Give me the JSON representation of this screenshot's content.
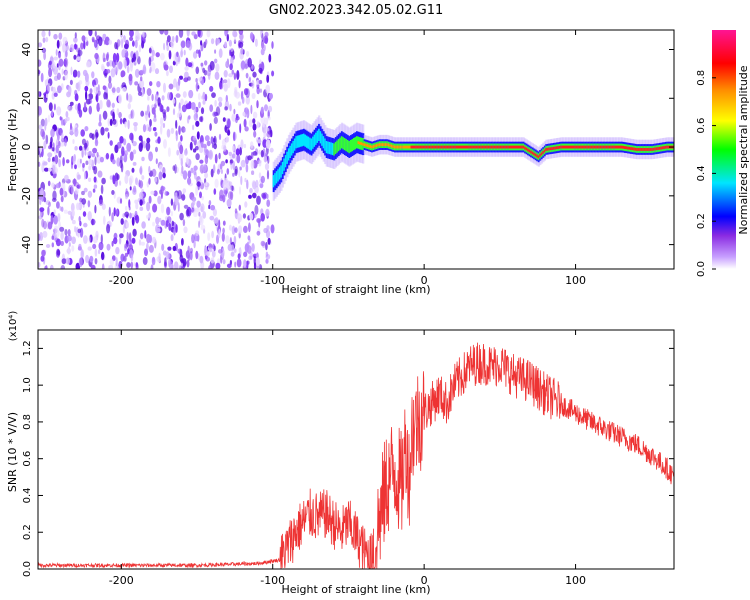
{
  "title": "GN02.2023.342.05.02.G11",
  "chart_data": [
    {
      "type": "heatmap",
      "xlabel": "Height of straight line (km)",
      "ylabel": "Frequency (Hz)",
      "xlim": [
        -255,
        165
      ],
      "ylim": [
        -50,
        48
      ],
      "xticks": [
        -200,
        -100,
        0,
        100
      ],
      "yticks": [
        -40,
        -20,
        0,
        20,
        40
      ],
      "colorbar": {
        "label": "Normalized spectral amplitude",
        "ticks": [
          "0.0",
          "0.2",
          "0.4",
          "0.6",
          "0.8"
        ],
        "colors": [
          "#ffffff",
          "#8a2be2",
          "#0000ff",
          "#00e5ff",
          "#00ff00",
          "#ffff00",
          "#ff8c00",
          "#ff0000",
          "#ff1493"
        ]
      },
      "noise_region": {
        "x_start": -255,
        "x_end": -100,
        "color": "#7b2ff7"
      },
      "ridge": {
        "x": [
          -100,
          -95,
          -90,
          -85,
          -80,
          -75,
          -70,
          -65,
          -60,
          -55,
          -50,
          -45,
          -40,
          -35,
          -30,
          -25,
          -20,
          -15,
          -10,
          -5,
          0,
          10,
          20,
          30,
          40,
          50,
          60,
          65,
          70,
          75,
          80,
          90,
          100,
          110,
          120,
          130,
          140,
          150,
          160,
          165
        ],
        "y": [
          -14,
          -10,
          -3,
          2,
          3,
          1,
          5,
          0,
          -1,
          2,
          0,
          2,
          1,
          0,
          1,
          1,
          0,
          0,
          0,
          0,
          0,
          0,
          0,
          0,
          0,
          0,
          0,
          0,
          -2,
          -4,
          -1,
          0,
          0,
          0,
          0,
          0,
          -1,
          -1,
          0,
          0
        ]
      }
    },
    {
      "type": "line",
      "xlabel": "Height of straight line (km)",
      "ylabel": "SNR (10 * V/V)",
      "yscale_label": "(x10⁴)",
      "xlim": [
        -255,
        165
      ],
      "ylim": [
        0,
        1.3
      ],
      "xticks": [
        -200,
        -100,
        0,
        100
      ],
      "yticks": [
        0.0,
        0.2,
        0.4,
        0.6,
        0.8,
        1.0,
        1.2
      ],
      "series": [
        {
          "color": "#ee3333",
          "x": [
            -255,
            -200,
            -150,
            -110,
            -95,
            -90,
            -85,
            -80,
            -75,
            -70,
            -65,
            -60,
            -55,
            -50,
            -45,
            -40,
            -35,
            -30,
            -25,
            -20,
            -15,
            -12,
            -10,
            -8,
            -5,
            0,
            5,
            10,
            15,
            20,
            25,
            30,
            35,
            40,
            45,
            50,
            55,
            60,
            70,
            80,
            90,
            100,
            110,
            120,
            130,
            140,
            150,
            160,
            165
          ],
          "y": [
            0.02,
            0.02,
            0.02,
            0.03,
            0.05,
            0.12,
            0.2,
            0.25,
            0.3,
            0.28,
            0.3,
            0.25,
            0.2,
            0.25,
            0.18,
            0.1,
            0.05,
            0.25,
            0.45,
            0.55,
            0.45,
            0.7,
            0.5,
            0.75,
            0.8,
            0.85,
            0.9,
            0.95,
            0.9,
            1.0,
            1.05,
            1.1,
            1.12,
            1.12,
            1.1,
            1.12,
            1.08,
            1.05,
            1.02,
            0.95,
            0.9,
            0.85,
            0.8,
            0.76,
            0.72,
            0.68,
            0.62,
            0.55,
            0.5
          ]
        }
      ]
    }
  ]
}
